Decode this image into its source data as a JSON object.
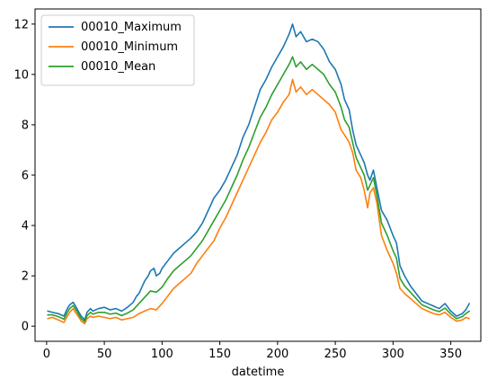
{
  "chart_data": {
    "type": "line",
    "xlabel": "datetime",
    "ylabel": "",
    "xlim": [
      -10,
      376
    ],
    "ylim": [
      -0.6,
      12.6
    ],
    "xticks": [
      0,
      50,
      100,
      150,
      200,
      250,
      300,
      350
    ],
    "yticks": [
      0,
      2,
      4,
      6,
      8,
      10,
      12
    ],
    "grid": false,
    "legend_position": "upper-left",
    "series": [
      {
        "name": "00010_Maximum",
        "color": "#1f77b4",
        "points": [
          [
            1,
            0.6
          ],
          [
            5,
            0.55
          ],
          [
            10,
            0.5
          ],
          [
            15,
            0.4
          ],
          [
            18,
            0.7
          ],
          [
            20,
            0.85
          ],
          [
            23,
            0.95
          ],
          [
            25,
            0.8
          ],
          [
            28,
            0.55
          ],
          [
            30,
            0.4
          ],
          [
            33,
            0.25
          ],
          [
            35,
            0.55
          ],
          [
            38,
            0.7
          ],
          [
            40,
            0.6
          ],
          [
            45,
            0.7
          ],
          [
            50,
            0.75
          ],
          [
            55,
            0.65
          ],
          [
            60,
            0.7
          ],
          [
            65,
            0.6
          ],
          [
            70,
            0.75
          ],
          [
            75,
            0.95
          ],
          [
            78,
            1.2
          ],
          [
            80,
            1.3
          ],
          [
            83,
            1.6
          ],
          [
            85,
            1.8
          ],
          [
            88,
            2.0
          ],
          [
            90,
            2.2
          ],
          [
            93,
            2.3
          ],
          [
            95,
            2.0
          ],
          [
            98,
            2.1
          ],
          [
            100,
            2.3
          ],
          [
            105,
            2.6
          ],
          [
            110,
            2.9
          ],
          [
            115,
            3.1
          ],
          [
            120,
            3.3
          ],
          [
            125,
            3.5
          ],
          [
            130,
            3.75
          ],
          [
            135,
            4.1
          ],
          [
            140,
            4.6
          ],
          [
            145,
            5.1
          ],
          [
            150,
            5.4
          ],
          [
            155,
            5.8
          ],
          [
            160,
            6.3
          ],
          [
            165,
            6.8
          ],
          [
            170,
            7.5
          ],
          [
            175,
            8.0
          ],
          [
            180,
            8.7
          ],
          [
            185,
            9.4
          ],
          [
            190,
            9.8
          ],
          [
            195,
            10.3
          ],
          [
            200,
            10.7
          ],
          [
            205,
            11.1
          ],
          [
            210,
            11.6
          ],
          [
            213,
            12.0
          ],
          [
            216,
            11.5
          ],
          [
            220,
            11.7
          ],
          [
            225,
            11.3
          ],
          [
            230,
            11.4
          ],
          [
            235,
            11.3
          ],
          [
            240,
            11.0
          ],
          [
            245,
            10.5
          ],
          [
            250,
            10.2
          ],
          [
            255,
            9.6
          ],
          [
            258,
            9.0
          ],
          [
            262,
            8.6
          ],
          [
            265,
            7.8
          ],
          [
            268,
            7.2
          ],
          [
            272,
            6.8
          ],
          [
            275,
            6.5
          ],
          [
            278,
            6.0
          ],
          [
            280,
            5.8
          ],
          [
            283,
            6.2
          ],
          [
            286,
            5.5
          ],
          [
            290,
            4.6
          ],
          [
            295,
            4.2
          ],
          [
            300,
            3.6
          ],
          [
            303,
            3.3
          ],
          [
            306,
            2.4
          ],
          [
            310,
            2.0
          ],
          [
            315,
            1.6
          ],
          [
            320,
            1.3
          ],
          [
            325,
            1.0
          ],
          [
            330,
            0.9
          ],
          [
            335,
            0.8
          ],
          [
            340,
            0.7
          ],
          [
            345,
            0.9
          ],
          [
            350,
            0.6
          ],
          [
            355,
            0.4
          ],
          [
            360,
            0.5
          ],
          [
            363,
            0.65
          ],
          [
            366,
            0.9
          ]
        ]
      },
      {
        "name": "00010_Minimum",
        "color": "#ff7f0e",
        "points": [
          [
            1,
            0.3
          ],
          [
            5,
            0.35
          ],
          [
            10,
            0.25
          ],
          [
            15,
            0.15
          ],
          [
            18,
            0.4
          ],
          [
            20,
            0.55
          ],
          [
            23,
            0.7
          ],
          [
            25,
            0.55
          ],
          [
            28,
            0.35
          ],
          [
            30,
            0.2
          ],
          [
            33,
            0.1
          ],
          [
            35,
            0.3
          ],
          [
            38,
            0.4
          ],
          [
            40,
            0.35
          ],
          [
            45,
            0.4
          ],
          [
            50,
            0.35
          ],
          [
            55,
            0.3
          ],
          [
            60,
            0.35
          ],
          [
            65,
            0.25
          ],
          [
            70,
            0.3
          ],
          [
            75,
            0.35
          ],
          [
            80,
            0.5
          ],
          [
            85,
            0.6
          ],
          [
            90,
            0.7
          ],
          [
            95,
            0.65
          ],
          [
            100,
            0.9
          ],
          [
            105,
            1.2
          ],
          [
            110,
            1.5
          ],
          [
            115,
            1.7
          ],
          [
            120,
            1.9
          ],
          [
            125,
            2.1
          ],
          [
            130,
            2.5
          ],
          [
            135,
            2.8
          ],
          [
            140,
            3.1
          ],
          [
            145,
            3.4
          ],
          [
            150,
            3.9
          ],
          [
            155,
            4.3
          ],
          [
            160,
            4.8
          ],
          [
            165,
            5.3
          ],
          [
            170,
            5.8
          ],
          [
            175,
            6.3
          ],
          [
            180,
            6.8
          ],
          [
            185,
            7.3
          ],
          [
            190,
            7.7
          ],
          [
            195,
            8.2
          ],
          [
            200,
            8.5
          ],
          [
            205,
            8.9
          ],
          [
            210,
            9.2
          ],
          [
            213,
            9.8
          ],
          [
            216,
            9.3
          ],
          [
            220,
            9.5
          ],
          [
            225,
            9.2
          ],
          [
            230,
            9.4
          ],
          [
            235,
            9.2
          ],
          [
            240,
            9.0
          ],
          [
            245,
            8.8
          ],
          [
            250,
            8.5
          ],
          [
            255,
            7.8
          ],
          [
            258,
            7.6
          ],
          [
            262,
            7.3
          ],
          [
            265,
            6.9
          ],
          [
            268,
            6.2
          ],
          [
            272,
            5.9
          ],
          [
            275,
            5.4
          ],
          [
            278,
            4.7
          ],
          [
            280,
            5.3
          ],
          [
            283,
            5.5
          ],
          [
            286,
            4.9
          ],
          [
            290,
            3.6
          ],
          [
            295,
            3.0
          ],
          [
            300,
            2.5
          ],
          [
            303,
            2.1
          ],
          [
            306,
            1.5
          ],
          [
            310,
            1.3
          ],
          [
            315,
            1.1
          ],
          [
            320,
            0.9
          ],
          [
            325,
            0.7
          ],
          [
            330,
            0.6
          ],
          [
            335,
            0.5
          ],
          [
            340,
            0.45
          ],
          [
            345,
            0.55
          ],
          [
            350,
            0.35
          ],
          [
            355,
            0.2
          ],
          [
            360,
            0.25
          ],
          [
            363,
            0.35
          ],
          [
            366,
            0.3
          ]
        ]
      },
      {
        "name": "00010_Mean",
        "color": "#2ca02c",
        "points": [
          [
            1,
            0.45
          ],
          [
            5,
            0.45
          ],
          [
            10,
            0.38
          ],
          [
            15,
            0.28
          ],
          [
            18,
            0.55
          ],
          [
            20,
            0.7
          ],
          [
            23,
            0.82
          ],
          [
            25,
            0.68
          ],
          [
            28,
            0.45
          ],
          [
            30,
            0.3
          ],
          [
            33,
            0.18
          ],
          [
            35,
            0.42
          ],
          [
            38,
            0.55
          ],
          [
            40,
            0.48
          ],
          [
            45,
            0.55
          ],
          [
            50,
            0.55
          ],
          [
            55,
            0.48
          ],
          [
            60,
            0.52
          ],
          [
            65,
            0.42
          ],
          [
            70,
            0.52
          ],
          [
            75,
            0.65
          ],
          [
            80,
            0.9
          ],
          [
            85,
            1.15
          ],
          [
            90,
            1.4
          ],
          [
            95,
            1.35
          ],
          [
            100,
            1.55
          ],
          [
            105,
            1.9
          ],
          [
            110,
            2.2
          ],
          [
            115,
            2.4
          ],
          [
            120,
            2.6
          ],
          [
            125,
            2.8
          ],
          [
            130,
            3.1
          ],
          [
            135,
            3.4
          ],
          [
            140,
            3.8
          ],
          [
            145,
            4.2
          ],
          [
            150,
            4.6
          ],
          [
            155,
            5.0
          ],
          [
            160,
            5.5
          ],
          [
            165,
            6.0
          ],
          [
            170,
            6.6
          ],
          [
            175,
            7.1
          ],
          [
            180,
            7.7
          ],
          [
            185,
            8.3
          ],
          [
            190,
            8.7
          ],
          [
            195,
            9.2
          ],
          [
            200,
            9.6
          ],
          [
            205,
            10.0
          ],
          [
            210,
            10.4
          ],
          [
            213,
            10.7
          ],
          [
            216,
            10.3
          ],
          [
            220,
            10.5
          ],
          [
            225,
            10.2
          ],
          [
            230,
            10.4
          ],
          [
            235,
            10.2
          ],
          [
            240,
            10.0
          ],
          [
            245,
            9.6
          ],
          [
            250,
            9.3
          ],
          [
            255,
            8.7
          ],
          [
            258,
            8.2
          ],
          [
            262,
            7.9
          ],
          [
            265,
            7.3
          ],
          [
            268,
            6.7
          ],
          [
            272,
            6.3
          ],
          [
            275,
            6.0
          ],
          [
            278,
            5.4
          ],
          [
            280,
            5.6
          ],
          [
            283,
            5.9
          ],
          [
            286,
            5.2
          ],
          [
            290,
            4.1
          ],
          [
            295,
            3.6
          ],
          [
            300,
            3.0
          ],
          [
            303,
            2.7
          ],
          [
            306,
            1.9
          ],
          [
            310,
            1.6
          ],
          [
            315,
            1.35
          ],
          [
            320,
            1.1
          ],
          [
            325,
            0.85
          ],
          [
            330,
            0.75
          ],
          [
            335,
            0.65
          ],
          [
            340,
            0.58
          ],
          [
            345,
            0.72
          ],
          [
            350,
            0.48
          ],
          [
            355,
            0.3
          ],
          [
            360,
            0.38
          ],
          [
            363,
            0.5
          ],
          [
            366,
            0.6
          ]
        ]
      }
    ]
  }
}
